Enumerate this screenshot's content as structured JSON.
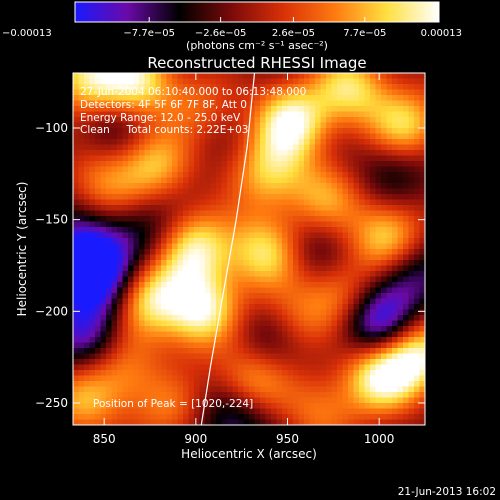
{
  "colorbar": {
    "tick_labels": [
      "−0.00013",
      "−7.7e−05",
      "−2.6e−05",
      "2.6e−05",
      "7.7e−05",
      "0.00013"
    ],
    "tick_values": [
      -0.00013,
      -7.7e-05,
      -2.6e-05,
      2.6e-05,
      7.7e-05,
      0.00013
    ],
    "unit_label": "(photons cm⁻² s⁻¹ asec⁻²)",
    "palette": [
      "#1a1aff",
      "#6a0aa8",
      "#000000",
      "#7a0a0a",
      "#d83008",
      "#ff7a10",
      "#ffe040",
      "#ffffff"
    ]
  },
  "chart_data": {
    "type": "heatmap",
    "title": "Reconstructed RHESSI Image",
    "xlabel": "Heliocentric X (arcsec)",
    "ylabel": "Heliocentric Y (arcsec)",
    "xlim": [
      833,
      1025
    ],
    "ylim": [
      -262,
      -70
    ],
    "xticks": [
      850,
      900,
      950,
      1000
    ],
    "yticks": [
      -100,
      -150,
      -200,
      -250
    ],
    "annotations": {
      "time_range": "27-Jun-2004 06:10:40.000 to 06:13:48.000",
      "detectors": "Detectors: 4F 5F 6F 7F 8F, Att 0",
      "energy": "Energy Range: 12.0 - 25.0 keV",
      "clean": "Clean     Total counts: 2.22E+03",
      "peak": "Position of Peak = [1020,-224]"
    },
    "peak": {
      "x": 1020,
      "y": -224
    },
    "limb_curve": [
      [
        932,
        -70
      ],
      [
        928,
        -110
      ],
      [
        922,
        -150
      ],
      [
        915,
        -190
      ],
      [
        908,
        -230
      ],
      [
        903,
        -262
      ]
    ],
    "sources": [
      {
        "x": 840,
        "y": -72,
        "v": 0.9
      },
      {
        "x": 868,
        "y": -74,
        "v": 0.85
      },
      {
        "x": 900,
        "y": -90,
        "v": 0.7
      },
      {
        "x": 952,
        "y": -96,
        "v": 1.0
      },
      {
        "x": 985,
        "y": -78,
        "v": 0.8
      },
      {
        "x": 1015,
        "y": -100,
        "v": 0.9
      },
      {
        "x": 878,
        "y": -120,
        "v": 0.75
      },
      {
        "x": 848,
        "y": -130,
        "v": 0.55
      },
      {
        "x": 940,
        "y": -125,
        "v": 0.7
      },
      {
        "x": 970,
        "y": -140,
        "v": 0.6
      },
      {
        "x": 1005,
        "y": -160,
        "v": 0.85
      },
      {
        "x": 900,
        "y": -165,
        "v": 0.9
      },
      {
        "x": 872,
        "y": -192,
        "v": 0.95
      },
      {
        "x": 902,
        "y": -200,
        "v": 1.0
      },
      {
        "x": 938,
        "y": -168,
        "v": 0.85
      },
      {
        "x": 952,
        "y": -205,
        "v": 0.6
      },
      {
        "x": 980,
        "y": -190,
        "v": 0.55
      },
      {
        "x": 1000,
        "y": -235,
        "v": 0.95
      },
      {
        "x": 1020,
        "y": -224,
        "v": 1.0
      },
      {
        "x": 930,
        "y": -238,
        "v": 0.8
      },
      {
        "x": 860,
        "y": -232,
        "v": 0.55
      },
      {
        "x": 838,
        "y": -250,
        "v": 0.6
      },
      {
        "x": 968,
        "y": -255,
        "v": 0.5
      },
      {
        "x": 885,
        "y": -255,
        "v": 0.45
      }
    ],
    "sinks": [
      {
        "x": 838,
        "y": -170,
        "v": 1.0
      },
      {
        "x": 852,
        "y": -186,
        "v": 0.7
      },
      {
        "x": 898,
        "y": -96,
        "v": 0.35
      },
      {
        "x": 855,
        "y": -100,
        "v": 0.3
      },
      {
        "x": 1010,
        "y": -120,
        "v": 0.4
      },
      {
        "x": 1015,
        "y": -180,
        "v": 0.5
      },
      {
        "x": 1000,
        "y": -208,
        "v": 0.9
      },
      {
        "x": 940,
        "y": -215,
        "v": 0.5
      },
      {
        "x": 922,
        "y": -258,
        "v": 0.55
      },
      {
        "x": 840,
        "y": -215,
        "v": 0.55
      },
      {
        "x": 875,
        "y": -155,
        "v": 0.35
      },
      {
        "x": 962,
        "y": -165,
        "v": 0.35
      }
    ]
  },
  "footer": {
    "timestamp": "21-Jun-2013 16:02"
  }
}
